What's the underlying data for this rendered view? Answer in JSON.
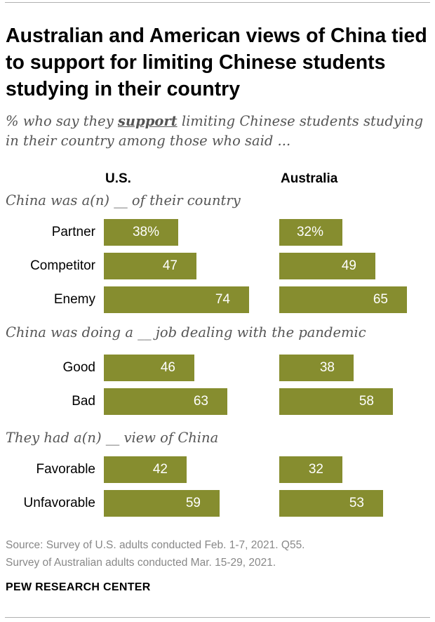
{
  "header": {
    "title": "Australian and American views of China tied to support for limiting Chinese students studying in their country",
    "subtitle_pre": "% who say they ",
    "subtitle_emphasis": "support",
    "subtitle_post": " limiting Chinese students studying in their country among those who said ..."
  },
  "chart_data": {
    "type": "bar",
    "orientation": "horizontal",
    "columns": [
      "U.S.",
      "Australia"
    ],
    "groups": [
      {
        "heading": "China was a(n) __ of their country",
        "rows": [
          {
            "label": "Partner",
            "values": [
              38,
              32
            ],
            "labels": [
              "38%",
              "32%"
            ]
          },
          {
            "label": "Competitor",
            "values": [
              47,
              49
            ],
            "labels": [
              "47",
              "49"
            ]
          },
          {
            "label": "Enemy",
            "values": [
              74,
              65
            ],
            "labels": [
              "74",
              "65"
            ]
          }
        ]
      },
      {
        "heading": "China was doing a __ job dealing with the pandemic",
        "rows": [
          {
            "label": "Good",
            "values": [
              46,
              38
            ],
            "labels": [
              "46",
              "38"
            ]
          },
          {
            "label": "Bad",
            "values": [
              63,
              58
            ],
            "labels": [
              "63",
              "58"
            ]
          }
        ]
      },
      {
        "heading": "They had a(n) __ view of China",
        "rows": [
          {
            "label": "Favorable",
            "values": [
              42,
              32
            ],
            "labels": [
              "42",
              "32"
            ]
          },
          {
            "label": "Unfavorable",
            "values": [
              59,
              53
            ],
            "labels": [
              "59",
              "53"
            ]
          }
        ]
      }
    ],
    "unit": "%",
    "bar_color": "#868d2f",
    "xlim": [
      0,
      100
    ]
  },
  "footer": {
    "source_line1": "Source: Survey of U.S. adults conducted Feb. 1-7, 2021. Q55.",
    "source_line2": "Survey of Australian adults conducted Mar. 15-29, 2021.",
    "brand": "PEW RESEARCH CENTER"
  }
}
